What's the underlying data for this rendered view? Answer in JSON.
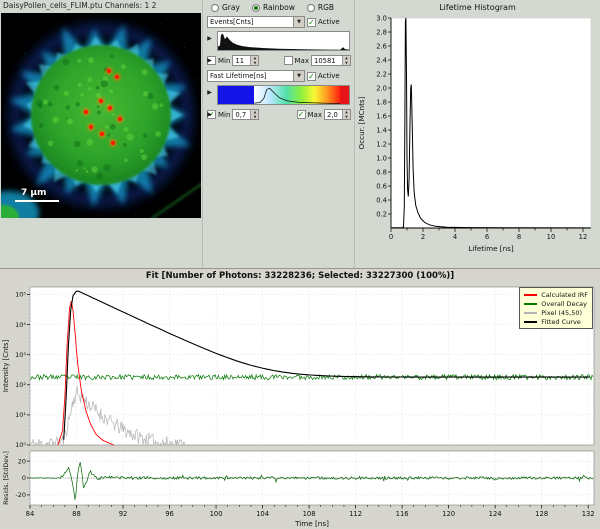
{
  "image_panel": {
    "title": "DaisyPollen_cells_FLIM.ptu Channels: 1 2",
    "scale_bar_label": "7 µm"
  },
  "controls": {
    "color_modes": [
      {
        "label": "Gray",
        "selected": false
      },
      {
        "label": "Rainbow",
        "selected": true
      },
      {
        "label": "RGB",
        "selected": false
      }
    ],
    "intensity": {
      "selector": "Events[Cnts]",
      "active_label": "Active",
      "active": true,
      "min_label": "Min",
      "min_value": "11",
      "min_checked": false,
      "max_label": "Max",
      "max_value": "10581",
      "max_checked": false
    },
    "lifetime": {
      "selector": "Fast Lifetime[ns]",
      "active_label": "Active",
      "active": true,
      "min_label": "Min",
      "min_value": "0,7",
      "min_checked": true,
      "max_label": "Max",
      "max_value": "2,0",
      "max_checked": true
    }
  },
  "fit": {
    "title": "Fit [Number of Photons: 33228236; Selected: 33227300 (100%)]",
    "xlabel": "Time [ns]",
    "ylabel_main": "Intensity [Cnts]",
    "ylabel_resid": "Resids. [StdDev.]",
    "legend": [
      {
        "label": "Calculated IRF",
        "color": "#ff0000"
      },
      {
        "label": "Overall Decay",
        "color": "#007800"
      },
      {
        "label": "Pixel (45,50)",
        "color": "#b4b4b4"
      },
      {
        "label": "Fitted Curve",
        "color": "#000000"
      }
    ]
  },
  "chart_data": [
    {
      "id": "lifetime_histogram",
      "type": "line",
      "title": "Lifetime Histogram",
      "xlabel": "Lifetime [ns]",
      "ylabel": "Occur. [MCnts]",
      "xlim": [
        0,
        12.5
      ],
      "ylim": [
        0,
        3.0
      ],
      "x_major_ticks": [
        0,
        2,
        4,
        6,
        8,
        10,
        12
      ],
      "x_minor_step": 1,
      "y_tick_step": 0.2,
      "series": [
        {
          "name": "occurrence",
          "color": "#000000",
          "points": [
            [
              0,
              0.005
            ],
            [
              0.7,
              0.005
            ],
            [
              0.78,
              0.02
            ],
            [
              0.83,
              0.3
            ],
            [
              0.87,
              1.6
            ],
            [
              0.9,
              2.95
            ],
            [
              0.93,
              3.0
            ],
            [
              0.97,
              2.2
            ],
            [
              1.0,
              1.0
            ],
            [
              1.04,
              0.55
            ],
            [
              1.08,
              0.45
            ],
            [
              1.13,
              0.7
            ],
            [
              1.18,
              1.4
            ],
            [
              1.23,
              2.0
            ],
            [
              1.27,
              2.05
            ],
            [
              1.32,
              1.55
            ],
            [
              1.38,
              0.85
            ],
            [
              1.45,
              0.5
            ],
            [
              1.55,
              0.32
            ],
            [
              1.68,
              0.22
            ],
            [
              1.85,
              0.14
            ],
            [
              2.1,
              0.08
            ],
            [
              2.4,
              0.045
            ],
            [
              2.8,
              0.025
            ],
            [
              3.5,
              0.012
            ],
            [
              5,
              0.006
            ],
            [
              8,
              0.003
            ],
            [
              12.4,
              0.002
            ]
          ]
        }
      ]
    },
    {
      "id": "fit_decay",
      "type": "line",
      "ylog": true,
      "xlim": [
        84,
        132.5
      ],
      "ylim_log": [
        0,
        5.25
      ],
      "x_ticks": [
        84,
        88,
        92,
        96,
        100,
        104,
        108,
        112,
        116,
        120,
        124,
        128,
        132
      ],
      "y_decades": [
        0,
        1,
        2,
        3,
        4,
        5
      ],
      "y_tick_labels": [
        "10⁰",
        "10¹",
        "10²",
        "10³",
        "10⁴",
        "10⁵"
      ],
      "series": [
        {
          "name": "Calculated IRF",
          "color": "#ff0000",
          "anchors": [
            [
              86.4,
              1
            ],
            [
              86.8,
              3
            ],
            [
              87.0,
              40
            ],
            [
              87.2,
              2500
            ],
            [
              87.4,
              35000
            ],
            [
              87.55,
              60000
            ],
            [
              87.7,
              30000
            ],
            [
              87.9,
              4000
            ],
            [
              88.1,
              500
            ],
            [
              88.4,
              70
            ],
            [
              88.8,
              14
            ],
            [
              89.2,
              5
            ],
            [
              89.7,
              2.2
            ],
            [
              90.3,
              1.4
            ],
            [
              91.2,
              1
            ]
          ]
        },
        {
          "name": "Overall Decay",
          "color": "#007800",
          "base": 180,
          "noise": 0.17
        },
        {
          "name": "Pixel (45,50)",
          "color": "#b4b4b4",
          "noise": 0.5,
          "anchors": [
            [
              84,
              1.05
            ],
            [
              86.3,
              1.1
            ],
            [
              86.9,
              1.5
            ],
            [
              87.3,
              6
            ],
            [
              87.7,
              28
            ],
            [
              88.0,
              55
            ],
            [
              88.5,
              38
            ],
            [
              89.2,
              20
            ],
            [
              90,
              11
            ],
            [
              91,
              5.5
            ],
            [
              92.3,
              2.8
            ],
            [
              93.6,
              1.7
            ],
            [
              95,
              1.2
            ],
            [
              97.3,
              1
            ]
          ]
        },
        {
          "name": "Fitted Curve",
          "color": "#000000",
          "anchors": [
            [
              86.9,
              1.5
            ],
            [
              87.1,
              30
            ],
            [
              87.3,
              2000
            ],
            [
              87.5,
              30000
            ],
            [
              87.7,
              90000
            ],
            [
              87.95,
              125000
            ]
          ],
          "decay": {
            "t0": 88.15,
            "amplitude": 130000,
            "tau": 2.4,
            "baseline": 180
          }
        }
      ]
    },
    {
      "id": "residuals",
      "type": "line",
      "xlim": [
        84,
        132.5
      ],
      "ylim": [
        -32,
        32
      ],
      "y_ticks": [
        20,
        0,
        -20
      ],
      "series": [
        {
          "name": "residuals",
          "color": "#006400",
          "noise": 1.6,
          "anchors": [
            [
              84,
              0
            ],
            [
              86.5,
              0
            ],
            [
              86.9,
              3
            ],
            [
              87.3,
              13
            ],
            [
              87.6,
              -3
            ],
            [
              87.9,
              -27
            ],
            [
              88.1,
              6
            ],
            [
              88.35,
              20
            ],
            [
              88.6,
              -12
            ],
            [
              88.85,
              -5
            ],
            [
              89.15,
              8
            ],
            [
              89.5,
              3
            ],
            [
              90,
              -2
            ],
            [
              90.7,
              1.5
            ],
            [
              91.5,
              0.5
            ],
            [
              93,
              0
            ],
            [
              132.5,
              0
            ]
          ]
        }
      ]
    }
  ]
}
